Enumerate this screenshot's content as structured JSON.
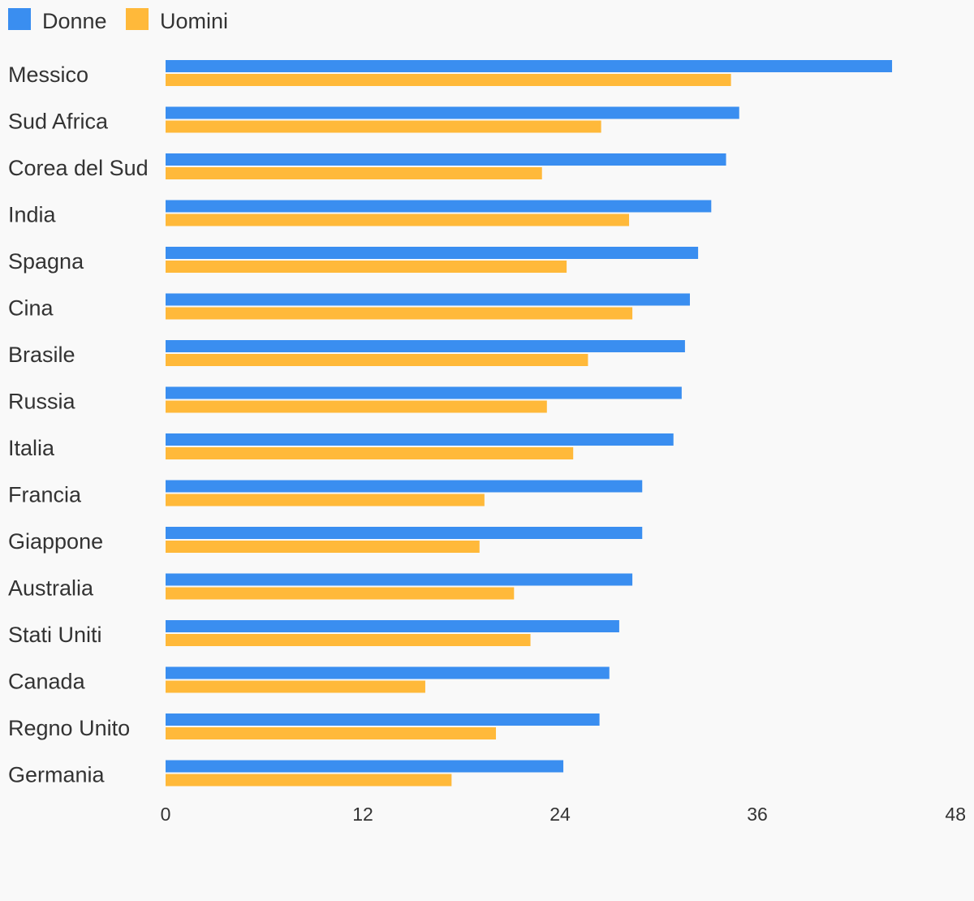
{
  "chart_data": {
    "type": "bar",
    "orientation": "horizontal",
    "categories": [
      "Messico",
      "Sud Africa",
      "Corea del Sud",
      "India",
      "Spagna",
      "Cina",
      "Brasile",
      "Russia",
      "Italia",
      "Francia",
      "Giappone",
      "Australia",
      "Stati Uniti",
      "Canada",
      "Regno Unito",
      "Germania"
    ],
    "series": [
      {
        "name": "Donne",
        "color": "#3a8ef0",
        "values": [
          44.2,
          34.9,
          34.1,
          33.2,
          32.4,
          31.9,
          31.6,
          31.4,
          30.9,
          29.0,
          29.0,
          28.4,
          27.6,
          27.0,
          26.4,
          24.2
        ]
      },
      {
        "name": "Uomini",
        "color": "#ffb93a",
        "values": [
          34.4,
          26.5,
          22.9,
          28.2,
          24.4,
          28.4,
          25.7,
          23.2,
          24.8,
          19.4,
          19.1,
          21.2,
          22.2,
          15.8,
          20.1,
          17.4
        ]
      }
    ],
    "xlim": [
      0,
      48
    ],
    "xticks": [
      "0",
      "12",
      "24",
      "36",
      "48"
    ],
    "legend": "top-left",
    "grid": false,
    "title": "",
    "xlabel": "",
    "ylabel": ""
  }
}
